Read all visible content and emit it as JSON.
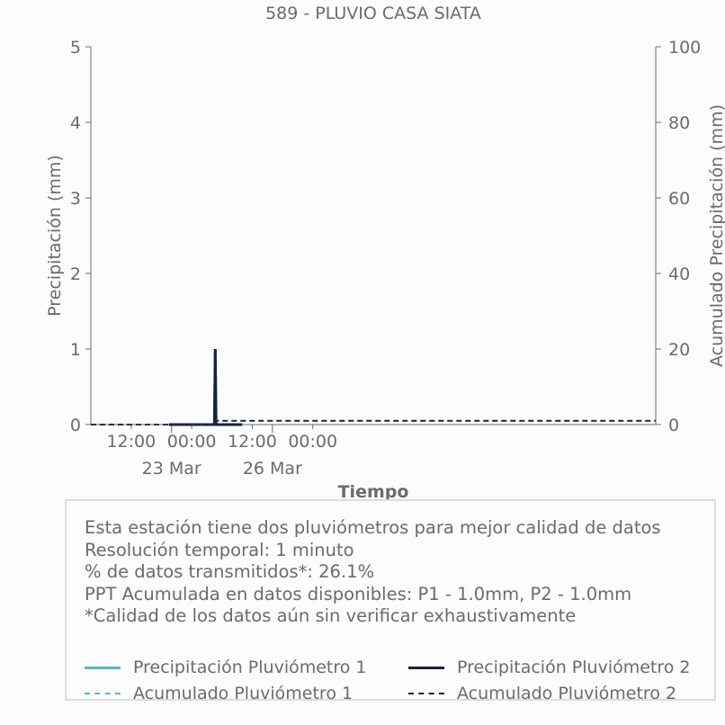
{
  "chart_data": {
    "type": "line",
    "title": "589 - PLUVIO CASA SIATA",
    "xlabel": "Tiempo",
    "ylabel_left": "Precipitación (mm)",
    "ylabel_right": "Acumulado Precipitación (mm)",
    "ylim_left": [
      0,
      5
    ],
    "ylim_right": [
      0,
      100
    ],
    "yticks_left": [
      "0",
      "1",
      "2",
      "3",
      "4",
      "5"
    ],
    "yticks_right": [
      "0",
      "20",
      "40",
      "60",
      "80",
      "100"
    ],
    "xlim": [
      "2024-03-22T04:00",
      "2024-03-26T20:00"
    ],
    "xticks": [
      {
        "t": "2024-03-22T12:00",
        "label": "12:00"
      },
      {
        "t": "2024-03-23T00:00",
        "label": "00:00"
      },
      {
        "t": "2024-03-23T12:00",
        "label": "12:00"
      },
      {
        "t": "2024-03-24T00:00",
        "label": "00:00"
      }
    ],
    "xticks_secondary": [
      {
        "t": "2024-03-22T20:00",
        "label": "23 Mar"
      },
      {
        "t": "2024-03-23T16:00",
        "label": "26 Mar"
      }
    ],
    "grid": false,
    "series": [
      {
        "name": "Precipitación Pluviómetro 1",
        "axis": "left",
        "style": "solid",
        "color": "#5ab4c4",
        "x": [
          "2024-03-22T19:30",
          "2024-03-23T04:30",
          "2024-03-23T04:40",
          "2024-03-23T04:50",
          "2024-03-23T10:00"
        ],
        "y": [
          0,
          0,
          1.0,
          0,
          0
        ]
      },
      {
        "name": "Precipitación Pluviómetro 2",
        "axis": "left",
        "style": "solid",
        "color": "#1a2238",
        "x": [
          "2024-03-22T19:30",
          "2024-03-23T04:30",
          "2024-03-23T04:40",
          "2024-03-23T04:50",
          "2024-03-23T10:00"
        ],
        "y": [
          0,
          0,
          1.0,
          0,
          0
        ]
      },
      {
        "name": "Acumulado Pluviómetro 1",
        "axis": "right",
        "style": "dashed",
        "color": "#5ab4c4",
        "x": [
          "2024-03-22T04:00",
          "2024-03-23T04:40",
          "2024-03-23T04:45",
          "2024-03-24T10:00",
          "2024-03-24T10:05",
          "2024-03-26T20:00"
        ],
        "y": [
          0,
          0,
          1.0,
          1.0,
          1.0,
          1.0
        ]
      },
      {
        "name": "Acumulado Pluviómetro 2",
        "axis": "right",
        "style": "dashed",
        "color": "#1a2238",
        "x": [
          "2024-03-22T04:00",
          "2024-03-23T04:40",
          "2024-03-23T04:45",
          "2024-03-24T10:00",
          "2024-03-24T10:05",
          "2024-03-26T20:00"
        ],
        "y": [
          0,
          0,
          1.0,
          1.0,
          1.0,
          1.0
        ]
      }
    ]
  },
  "info": {
    "line1": "Esta estación tiene dos pluviómetros para mejor calidad de datos",
    "line2": "Resolución temporal: 1 minuto",
    "line3": "% de datos transmitidos*: 26.1%",
    "line4": "PPT Acumulada en datos disponibles: P1 - 1.0mm, P2 - 1.0mm",
    "line5": "*Calidad de los datos aún sin verificar exhaustivamente"
  },
  "colors": {
    "p1": "#5ab4c4",
    "p2": "#1a2238",
    "axis": "#6b6b6b",
    "box_border": "#dddddd"
  }
}
